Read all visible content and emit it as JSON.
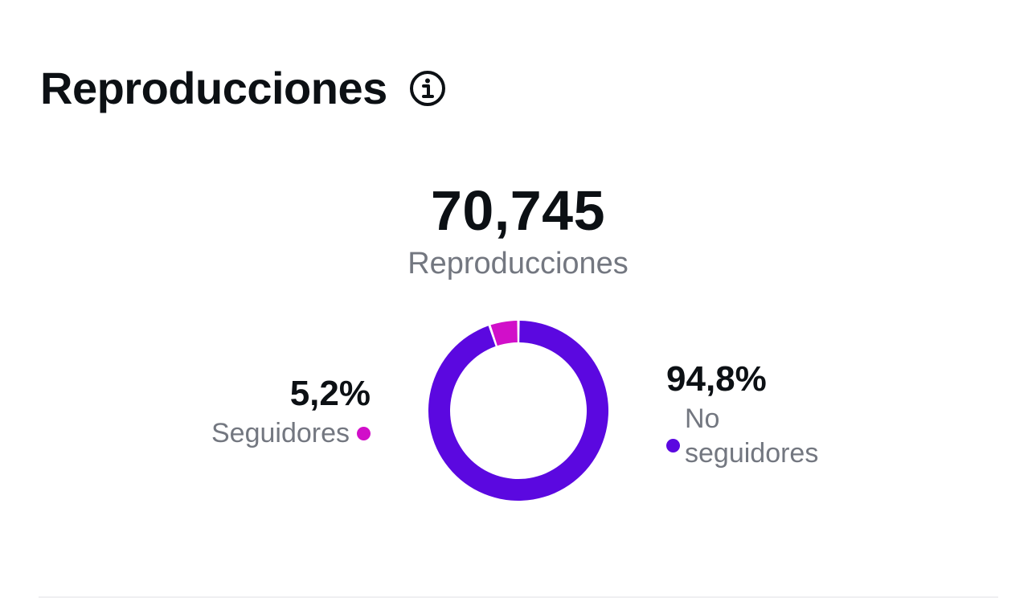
{
  "header": {
    "title": "Reproducciones",
    "info_icon": "info-circle-icon"
  },
  "summary": {
    "total_value": "70,745",
    "total_label": "Reproducciones"
  },
  "colors": {
    "followers": "#d10fc9",
    "non_followers": "#5b08e0",
    "text_primary": "#0c1014",
    "text_secondary": "#737780"
  },
  "chart_data": {
    "type": "pie",
    "categories": [
      "Seguidores",
      "No seguidores"
    ],
    "values": [
      5.2,
      94.8
    ],
    "value_labels": [
      "5,2%",
      "94,8%"
    ],
    "colors": [
      "#d10fc9",
      "#5b08e0"
    ],
    "title": "",
    "donut": true,
    "legend": "sides"
  },
  "legend": {
    "followers": {
      "percent": "5,2%",
      "label": "Seguidores"
    },
    "non_followers": {
      "percent": "94,8%",
      "label": "No seguidores"
    }
  }
}
